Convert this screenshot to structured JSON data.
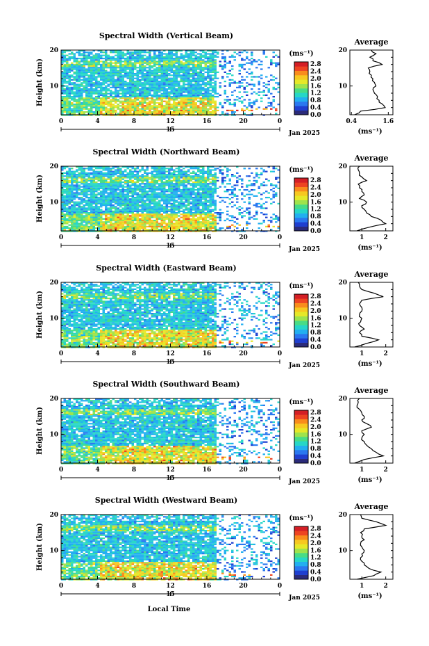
{
  "figure": {
    "xlabel": "Local Time",
    "ylabel": "Height (km)",
    "date_label": "Jan 2025",
    "day_label": "15",
    "colorbar_unit": "(ms⁻¹)",
    "colorbar_ticks": [
      "0.0",
      "0.4",
      "0.8",
      "1.2",
      "1.6",
      "2.0",
      "2.4",
      "2.8"
    ],
    "colorbar_colors": [
      "#2b2b7a",
      "#1f3fd0",
      "#2a78f0",
      "#22aff0",
      "#26d7c7",
      "#48dc86",
      "#9fe34c",
      "#e6e828",
      "#f7c820",
      "#f98c1c",
      "#ee4422",
      "#d41f26"
    ],
    "avg_title": "Average",
    "avg_xunit": "(ms⁻¹)",
    "x_ticks": [
      "0",
      "4",
      "8",
      "12",
      "16",
      "20",
      "0"
    ],
    "y_ticks": [
      "20",
      "10"
    ]
  },
  "chart_data": [
    {
      "type": "heatmap",
      "title": "Spectral Width (Vertical Beam)",
      "ylabel": "Height (km)",
      "xlim": [
        0,
        24
      ],
      "ylim": [
        2,
        20
      ],
      "colorbar_range": [
        0.0,
        3.0
      ],
      "average": {
        "xticks": [
          "0.4",
          "1.6"
        ],
        "xlim": [
          0.35,
          1.75
        ],
        "height": [
          2,
          3,
          4,
          5,
          6,
          7,
          8,
          9,
          10,
          11,
          12,
          13,
          14,
          15,
          16,
          17,
          18,
          19,
          20
        ],
        "value": [
          0.5,
          0.7,
          1.5,
          1.4,
          1.3,
          1.25,
          1.15,
          1.1,
          1.2,
          1.15,
          1.1,
          1.05,
          1.0,
          0.95,
          1.4,
          1.1,
          1.0,
          1.2,
          1.05
        ]
      }
    },
    {
      "type": "heatmap",
      "title": "Spectral Width (Northward Beam)",
      "ylabel": "Height (km)",
      "xlim": [
        0,
        24
      ],
      "ylim": [
        2,
        20
      ],
      "colorbar_range": [
        0.0,
        3.0
      ],
      "average": {
        "xticks": [
          "1",
          "2"
        ],
        "xlim": [
          0.5,
          2.3
        ],
        "height": [
          2,
          3,
          4,
          5,
          6,
          7,
          8,
          9,
          10,
          11,
          12,
          13,
          14,
          15,
          16,
          17,
          18,
          19,
          20
        ],
        "value": [
          0.8,
          1.3,
          2.0,
          1.8,
          1.4,
          1.2,
          1.1,
          1.0,
          1.2,
          0.9,
          1.1,
          1.0,
          0.9,
          0.85,
          1.2,
          1.0,
          0.9,
          0.85,
          0.9
        ]
      }
    },
    {
      "type": "heatmap",
      "title": "Spectral Width (Eastward Beam)",
      "ylabel": "Height (km)",
      "xlim": [
        0,
        24
      ],
      "ylim": [
        2,
        20
      ],
      "colorbar_range": [
        0.0,
        3.0
      ],
      "average": {
        "xticks": [
          "1",
          "2"
        ],
        "xlim": [
          0.5,
          2.3
        ],
        "height": [
          2,
          3,
          4,
          5,
          6,
          7,
          8,
          9,
          10,
          11,
          12,
          13,
          14,
          15,
          16,
          17,
          18,
          19,
          20
        ],
        "value": [
          0.7,
          1.2,
          1.7,
          1.0,
          0.9,
          1.1,
          0.9,
          0.95,
          1.0,
          0.9,
          1.0,
          1.0,
          0.9,
          1.0,
          1.9,
          1.5,
          1.0,
          0.9,
          0.85
        ]
      }
    },
    {
      "type": "heatmap",
      "title": "Spectral Width (Southward Beam)",
      "ylabel": "Height (km)",
      "xlim": [
        0,
        24
      ],
      "ylim": [
        2,
        20
      ],
      "colorbar_range": [
        0.0,
        3.0
      ],
      "average": {
        "xticks": [
          "1",
          "2"
        ],
        "xlim": [
          0.5,
          2.3
        ],
        "height": [
          2,
          3,
          4,
          5,
          6,
          7,
          8,
          9,
          10,
          11,
          12,
          13,
          14,
          15,
          16,
          17,
          18,
          19,
          20
        ],
        "value": [
          0.7,
          1.1,
          1.9,
          1.6,
          1.4,
          1.2,
          1.1,
          1.0,
          1.1,
          1.0,
          1.4,
          1.2,
          1.0,
          1.1,
          1.0,
          0.9,
          0.8,
          0.85,
          0.9
        ]
      }
    },
    {
      "type": "heatmap",
      "title": "Spectral Width (Westward Beam)",
      "ylabel": "Height (km)",
      "xlim": [
        0,
        24
      ],
      "ylim": [
        2,
        20
      ],
      "colorbar_range": [
        0.0,
        3.0
      ],
      "average": {
        "xticks": [
          "1",
          "2"
        ],
        "xlim": [
          0.5,
          2.3
        ],
        "height": [
          2,
          3,
          4,
          5,
          6,
          7,
          8,
          9,
          10,
          11,
          12,
          13,
          14,
          15,
          16,
          17,
          18,
          19,
          20
        ],
        "value": [
          0.8,
          1.5,
          1.8,
          1.3,
          1.1,
          1.0,
          0.95,
          1.0,
          1.1,
          1.0,
          0.95,
          1.1,
          1.0,
          0.95,
          1.1,
          2.0,
          1.6,
          1.0,
          0.95
        ]
      }
    }
  ]
}
